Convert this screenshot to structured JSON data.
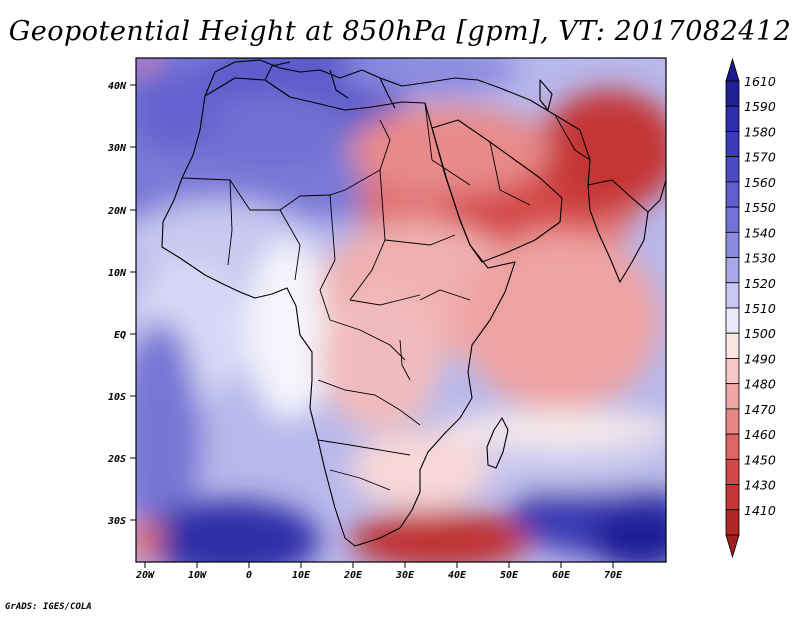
{
  "title": "Geopotential Height at 850hPa [gpm], VT: 2017082412",
  "credit": "GrADS: IGES/COLA",
  "map": {
    "variable": "Geopotential Height",
    "level": "850hPa",
    "units": "gpm",
    "valid_time": "2017082412",
    "lon_ticks": [
      "20W",
      "10W",
      "0",
      "10E",
      "20E",
      "30E",
      "40E",
      "50E",
      "60E",
      "70E"
    ],
    "lat_ticks": [
      "40N",
      "30N",
      "20N",
      "10N",
      "EQ",
      "10S",
      "20S",
      "30S"
    ]
  },
  "colorbar": {
    "levels": [
      "1610",
      "1590",
      "1580",
      "1570",
      "1560",
      "1550",
      "1540",
      "1530",
      "1520",
      "1510",
      "1500",
      "1490",
      "1480",
      "1470",
      "1460",
      "1450",
      "1430",
      "1410"
    ],
    "colors": [
      "#1f1f96",
      "#2e2eaa",
      "#3c3cb8",
      "#4b4bc4",
      "#5e5ece",
      "#7272d6",
      "#8a8ade",
      "#a8a8e8",
      "#c8c8f2",
      "#eaeafa",
      "#fbe6e6",
      "#f5c6c6",
      "#efa7a7",
      "#e88686",
      "#df6464",
      "#d44848",
      "#c53535",
      "#b02626"
    ],
    "top_arrow_color": "#1a1a8c",
    "bottom_arrow_color": "#a02020"
  }
}
